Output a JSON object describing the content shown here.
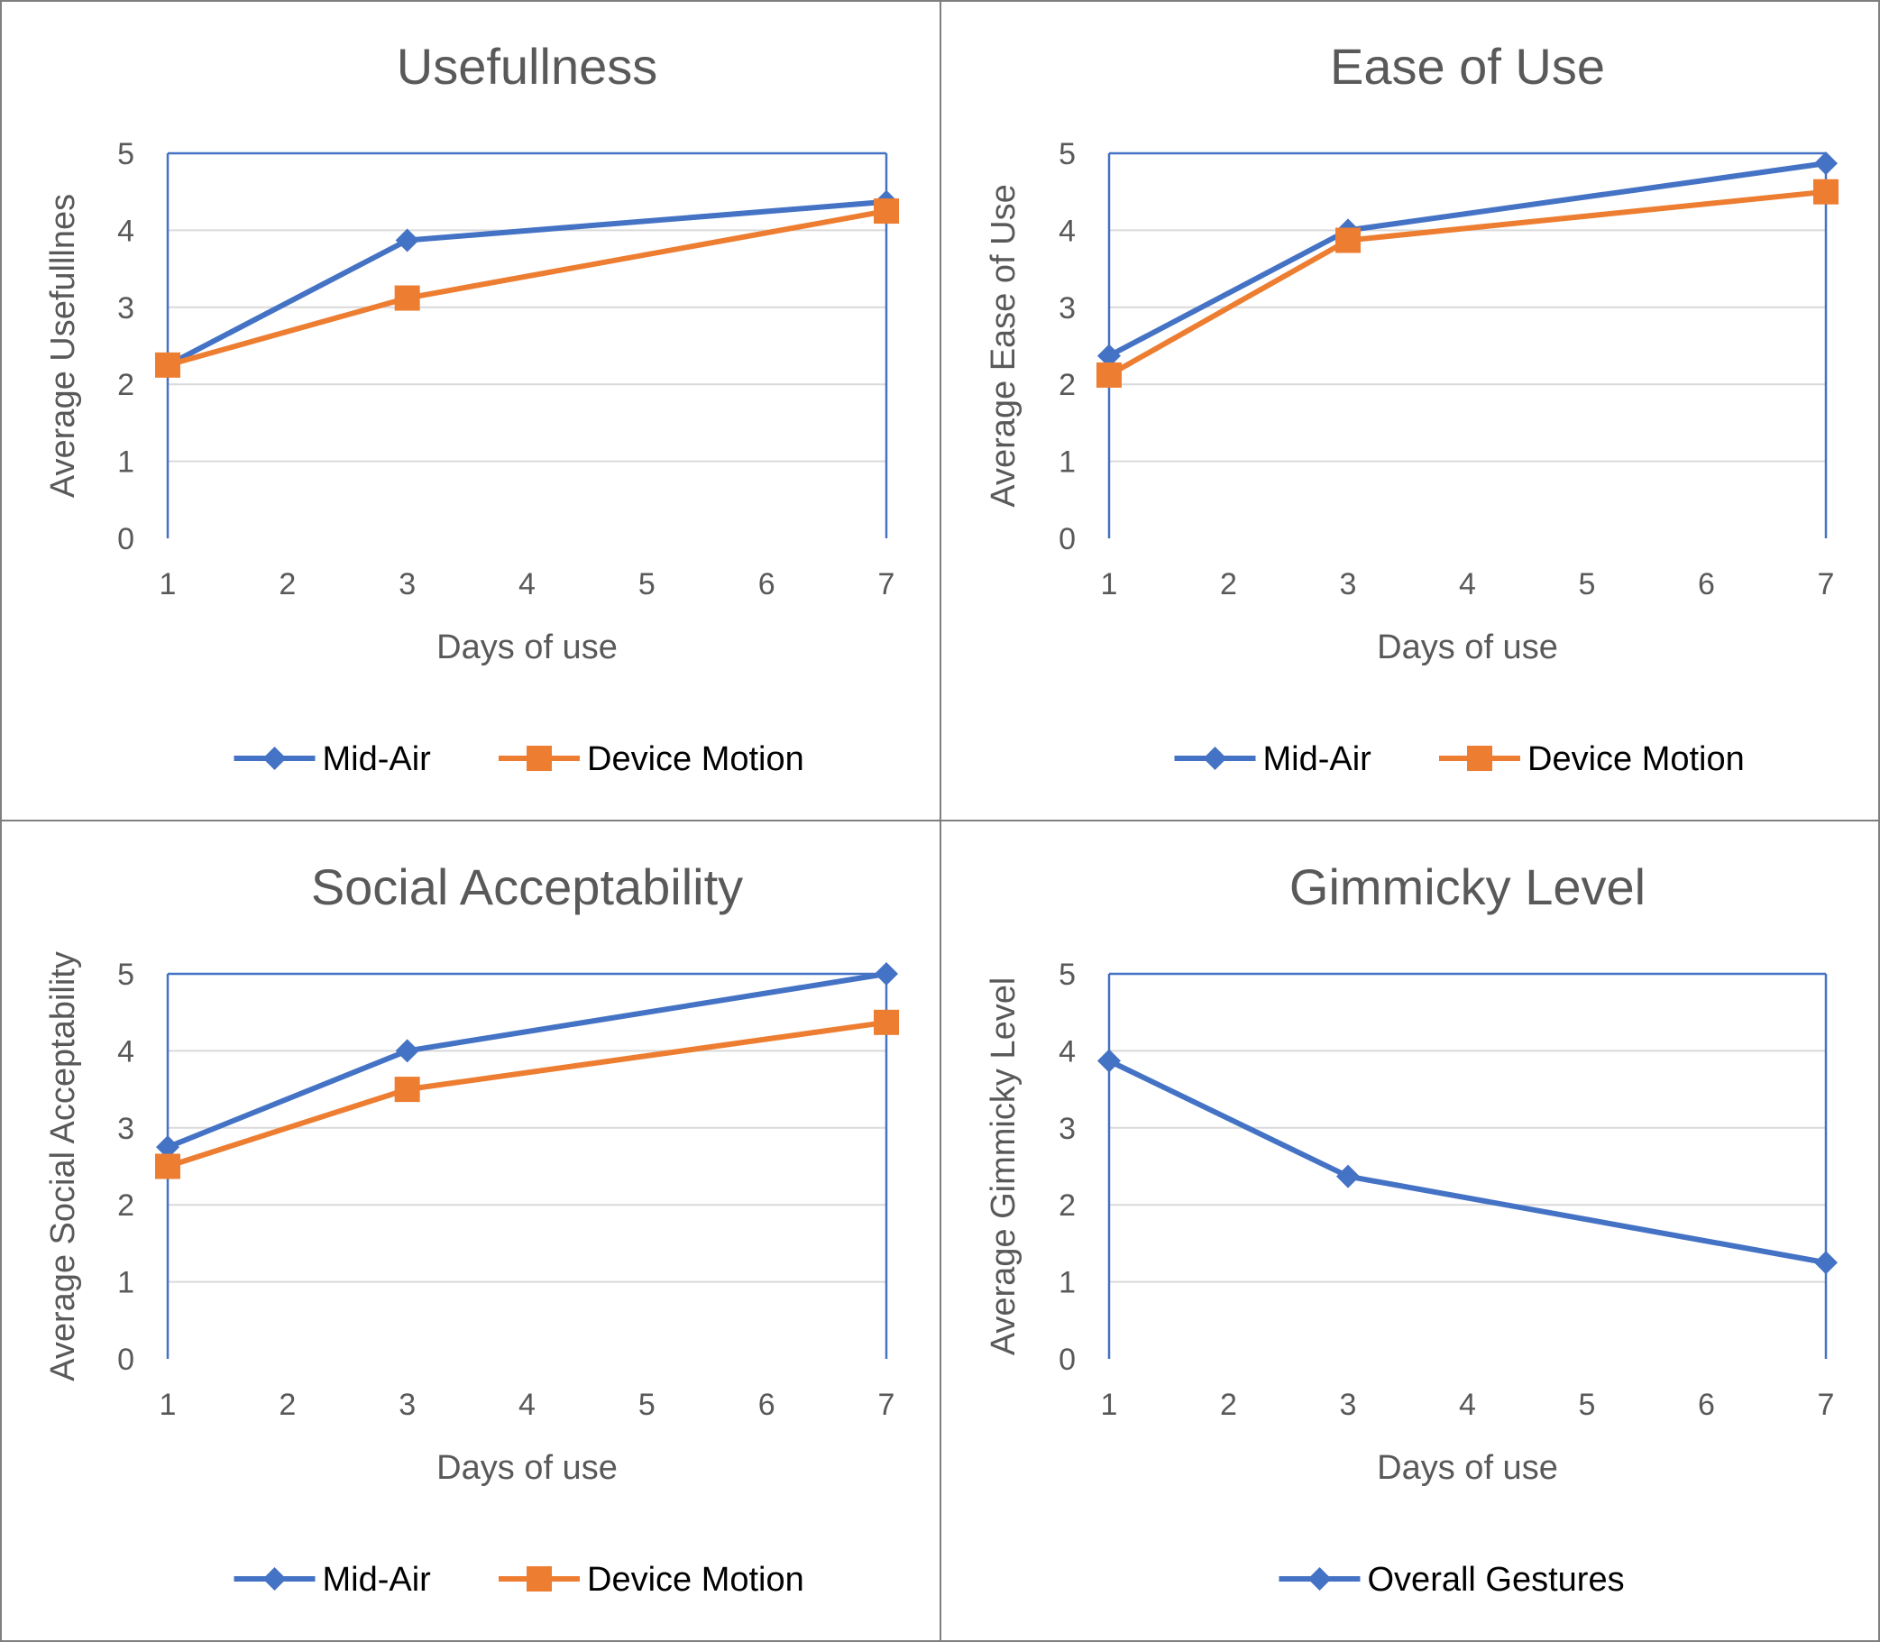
{
  "colors": {
    "mid_air": "#4472c4",
    "device_motion": "#ed7d31",
    "text": "#595959",
    "grid": "#d9d9d9",
    "frame": "#4472c4",
    "border": "#7f7f7f"
  },
  "chart_data": [
    {
      "type": "line",
      "title": "Usefullness",
      "xlabel": "Days of use",
      "ylabel": "Average Usefulllnes",
      "xlim": [
        1,
        7
      ],
      "ylim": [
        0,
        5
      ],
      "x_ticks": [
        "1",
        "2",
        "3",
        "4",
        "5",
        "6",
        "7"
      ],
      "y_ticks": [
        "0",
        "1",
        "2",
        "3",
        "4",
        "5"
      ],
      "grid": true,
      "legend_position": "bottom",
      "series": [
        {
          "name": "Mid-Air",
          "marker": "diamond",
          "color": "#4472c4",
          "x": [
            1,
            3,
            7
          ],
          "values": [
            2.25,
            3.87,
            4.37
          ]
        },
        {
          "name": "Device Motion",
          "marker": "square",
          "color": "#ed7d31",
          "x": [
            1,
            3,
            7
          ],
          "values": [
            2.25,
            3.12,
            4.25
          ]
        }
      ]
    },
    {
      "type": "line",
      "title": "Ease of Use",
      "xlabel": "Days of use",
      "ylabel": "Average Ease of Use",
      "xlim": [
        1,
        7
      ],
      "ylim": [
        0,
        5
      ],
      "x_ticks": [
        "1",
        "2",
        "3",
        "4",
        "5",
        "6",
        "7"
      ],
      "y_ticks": [
        "0",
        "1",
        "2",
        "3",
        "4",
        "5"
      ],
      "grid": true,
      "legend_position": "bottom",
      "series": [
        {
          "name": "Mid-Air",
          "marker": "diamond",
          "color": "#4472c4",
          "x": [
            1,
            3,
            7
          ],
          "values": [
            2.37,
            4.0,
            4.87
          ]
        },
        {
          "name": "Device Motion",
          "marker": "square",
          "color": "#ed7d31",
          "x": [
            1,
            3,
            7
          ],
          "values": [
            2.12,
            3.87,
            4.5
          ]
        }
      ]
    },
    {
      "type": "line",
      "title": "Social Acceptability",
      "xlabel": "Days of use",
      "ylabel": "Average Social Acceptability",
      "xlim": [
        1,
        7
      ],
      "ylim": [
        0,
        5
      ],
      "x_ticks": [
        "1",
        "2",
        "3",
        "4",
        "5",
        "6",
        "7"
      ],
      "y_ticks": [
        "0",
        "1",
        "2",
        "3",
        "4",
        "5"
      ],
      "grid": true,
      "legend_position": "bottom",
      "series": [
        {
          "name": "Mid-Air",
          "marker": "diamond",
          "color": "#4472c4",
          "x": [
            1,
            3,
            7
          ],
          "values": [
            2.75,
            4.0,
            5.0
          ]
        },
        {
          "name": "Device Motion",
          "marker": "square",
          "color": "#ed7d31",
          "x": [
            1,
            3,
            7
          ],
          "values": [
            2.5,
            3.5,
            4.37
          ]
        }
      ]
    },
    {
      "type": "line",
      "title": "Gimmicky Level",
      "xlabel": "Days of use",
      "ylabel": "Average Gimmicky Level",
      "xlim": [
        1,
        7
      ],
      "ylim": [
        0,
        5
      ],
      "x_ticks": [
        "1",
        "2",
        "3",
        "4",
        "5",
        "6",
        "7"
      ],
      "y_ticks": [
        "0",
        "1",
        "2",
        "3",
        "4",
        "5"
      ],
      "grid": true,
      "legend_position": "bottom",
      "series": [
        {
          "name": "Overall Gestures",
          "marker": "diamond",
          "color": "#4472c4",
          "x": [
            1,
            3,
            7
          ],
          "values": [
            3.87,
            2.37,
            1.25
          ]
        }
      ]
    }
  ]
}
